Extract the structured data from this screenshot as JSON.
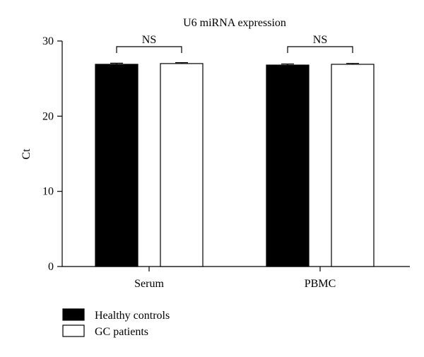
{
  "chart_data": {
    "type": "bar",
    "title": "U6 miRNA expression",
    "ylabel": "Ct",
    "xlabel": "",
    "ylim": [
      0,
      30
    ],
    "yticks": [
      0,
      10,
      20,
      30
    ],
    "categories": [
      "Serum",
      "PBMC"
    ],
    "series": [
      {
        "name": "Healthy controls",
        "color": "#000000",
        "values": [
          26.9,
          26.8
        ],
        "errors": [
          0.15,
          0.15
        ]
      },
      {
        "name": "GC patients",
        "color": "#ffffff",
        "values": [
          27.0,
          26.9
        ],
        "errors": [
          0.12,
          0.12
        ]
      }
    ],
    "annotations": [
      {
        "category": "Serum",
        "text": "NS"
      },
      {
        "category": "PBMC",
        "text": "NS"
      }
    ],
    "legend_position": "bottom-left",
    "grid": false
  }
}
